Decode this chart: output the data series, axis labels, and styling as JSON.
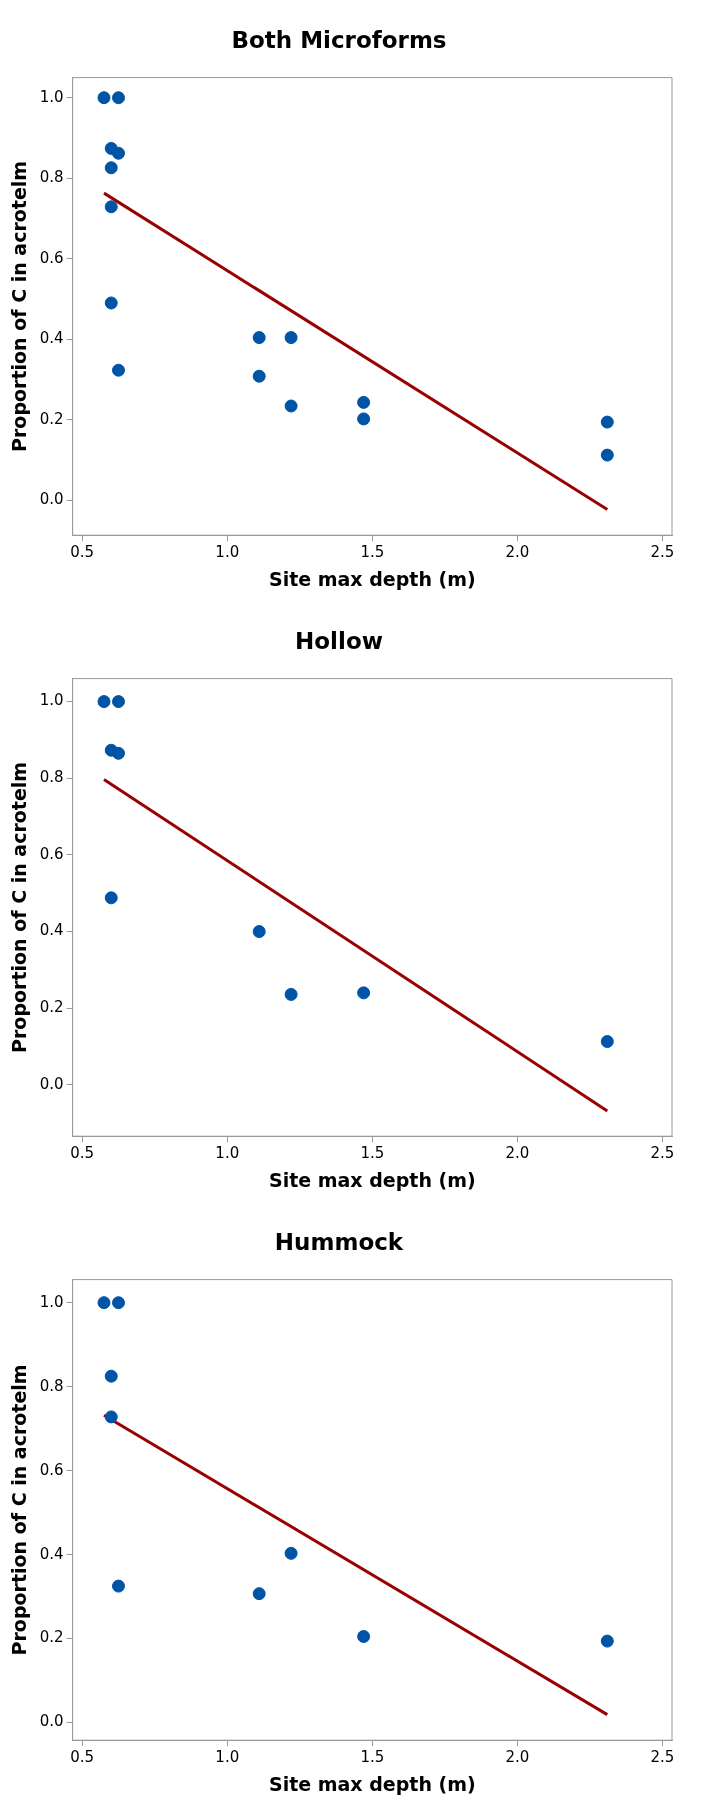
{
  "chart_data": [
    {
      "type": "scatter",
      "title": "Both Microforms",
      "xlabel": "Site max depth (m)",
      "ylabel": "Proportion of C in acrotelm",
      "xlim": [
        0.467,
        2.533
      ],
      "xticks": [
        {
          "value": 0.5,
          "label": "0.5"
        },
        {
          "value": 1,
          "label": "1.0"
        },
        {
          "value": 1.5,
          "label": "1.5"
        },
        {
          "value": 2,
          "label": "2.0"
        },
        {
          "value": 2.5,
          "label": "2.5"
        }
      ],
      "ylim": [
        -0.087,
        1.05
      ],
      "yticks": [
        {
          "value": 0,
          "label": "0.0"
        },
        {
          "value": 0.2,
          "label": "0.2"
        },
        {
          "value": 0.4,
          "label": "0.4"
        },
        {
          "value": 0.6,
          "label": "0.6"
        },
        {
          "value": 0.8,
          "label": "0.8"
        },
        {
          "value": 1,
          "label": "1.0"
        }
      ],
      "grid": false,
      "legend": false,
      "series": [
        {
          "marker": "circle",
          "color": "#0054a6",
          "x": [
            0.575,
            0.625,
            0.6,
            0.625,
            0.6,
            0.6,
            0.6,
            0.625,
            1.11,
            1.11,
            1.22,
            1.22,
            1.47,
            1.47,
            2.31,
            2.31
          ],
          "values": [
            1.0,
            1.0,
            0.874,
            0.862,
            0.826,
            0.729,
            0.49,
            0.323,
            0.404,
            0.308,
            0.404,
            0.234,
            0.243,
            0.202,
            0.194,
            0.112
          ]
        },
        {
          "type": "line",
          "marker": "none",
          "color": "#990000",
          "x": [
            0.575,
            2.31
          ],
          "values": [
            0.763,
            -0.023
          ]
        }
      ]
    },
    {
      "type": "scatter",
      "title": "Hollow",
      "xlabel": "Site max depth (m)",
      "ylabel": "Proportion of C in acrotelm",
      "xlim": [
        0.467,
        2.533
      ],
      "xticks": [
        {
          "value": 0.5,
          "label": "0.5"
        },
        {
          "value": 1,
          "label": "1.0"
        },
        {
          "value": 1.5,
          "label": "1.5"
        },
        {
          "value": 2,
          "label": "2.0"
        },
        {
          "value": 2.5,
          "label": "2.5"
        }
      ],
      "ylim": [
        -0.134,
        1.06
      ],
      "yticks": [
        {
          "value": 0,
          "label": "0.0"
        },
        {
          "value": 0.2,
          "label": "0.2"
        },
        {
          "value": 0.4,
          "label": "0.4"
        },
        {
          "value": 0.6,
          "label": "0.6"
        },
        {
          "value": 0.8,
          "label": "0.8"
        },
        {
          "value": 1,
          "label": "1.0"
        }
      ],
      "grid": false,
      "legend": false,
      "series": [
        {
          "marker": "circle",
          "color": "#0054a6",
          "x": [
            0.575,
            0.625,
            0.6,
            0.625,
            0.6,
            1.11,
            1.22,
            1.47,
            2.31
          ],
          "values": [
            1.0,
            1.0,
            0.873,
            0.865,
            0.488,
            0.4,
            0.236,
            0.24,
            0.113
          ]
        },
        {
          "type": "line",
          "marker": "none",
          "color": "#990000",
          "x": [
            0.575,
            2.31
          ],
          "values": [
            0.797,
            -0.068
          ]
        }
      ]
    },
    {
      "type": "scatter",
      "title": "Hummock",
      "xlabel": "Site max depth (m)",
      "ylabel": "Proportion of C in acrotelm",
      "xlim": [
        0.467,
        2.533
      ],
      "xticks": [
        {
          "value": 0.5,
          "label": "0.5"
        },
        {
          "value": 1,
          "label": "1.0"
        },
        {
          "value": 1.5,
          "label": "1.5"
        },
        {
          "value": 2,
          "label": "2.0"
        },
        {
          "value": 2.5,
          "label": "2.5"
        }
      ],
      "ylim": [
        -0.042,
        1.055
      ],
      "yticks": [
        {
          "value": 0,
          "label": "0.0"
        },
        {
          "value": 0.2,
          "label": "0.2"
        },
        {
          "value": 0.4,
          "label": "0.4"
        },
        {
          "value": 0.6,
          "label": "0.6"
        },
        {
          "value": 0.8,
          "label": "0.8"
        },
        {
          "value": 1,
          "label": "1.0"
        }
      ],
      "grid": false,
      "legend": false,
      "series": [
        {
          "marker": "circle",
          "color": "#0054a6",
          "x": [
            0.575,
            0.625,
            0.6,
            0.6,
            0.625,
            1.11,
            1.22,
            1.47,
            2.31
          ],
          "values": [
            1.0,
            1.0,
            0.825,
            0.728,
            0.325,
            0.307,
            0.403,
            0.205,
            0.194
          ]
        },
        {
          "type": "line",
          "marker": "none",
          "color": "#990000",
          "x": [
            0.575,
            2.31
          ],
          "values": [
            0.732,
            0.019
          ]
        }
      ]
    }
  ]
}
